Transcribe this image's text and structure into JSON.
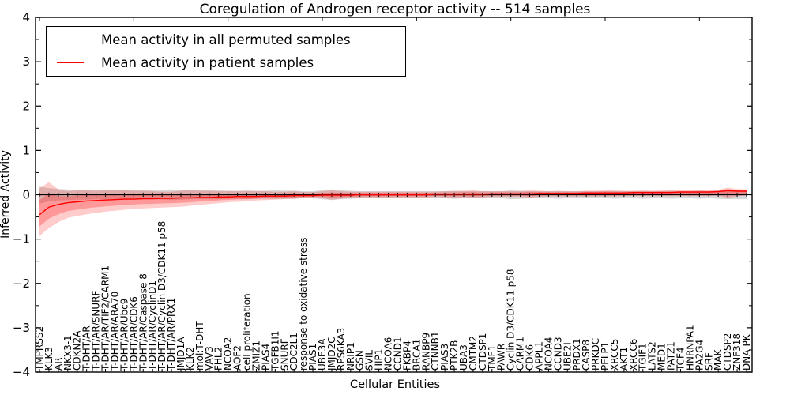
{
  "chart": {
    "title": "Coregulation of Androgen receptor activity -- 514 samples",
    "xlabel": "Cellular Entities",
    "ylabel": "Inferred Activity",
    "legend": {
      "position": "upper left",
      "items": [
        {
          "label": "Mean activity in all permuted samples",
          "color": "#000000"
        },
        {
          "label": "Mean activity in patient samples",
          "color": "#ff0000"
        }
      ]
    }
  },
  "chart_data": {
    "type": "line",
    "title": "Coregulation of Androgen receptor activity -- 514 samples",
    "xlabel": "Cellular Entities",
    "ylabel": "Inferred Activity",
    "ylim": [
      -4,
      4
    ],
    "yticks": [
      -4,
      -3,
      -2,
      -1,
      0,
      1,
      2,
      3,
      4
    ],
    "y_minor_step": 0.5,
    "grid": false,
    "legend_position": "upper left",
    "categories": [
      "TMPRSS2",
      "KLK3",
      "AR",
      "NKX3-1",
      "CDKN2A",
      "T-DHT/AR",
      "T-DHT/AR/SNURF",
      "T-DHT/AR/TIF2/CARM1",
      "T-DHT/AR/ARA70",
      "T-DHT/AR/Ubc9",
      "T-DHT/AR/CDK6",
      "T-DHT/AR/Caspase 8",
      "T-DHT/AR/CyclinD1",
      "T-DHT/AR/Cyclin D3/CDK11 p58",
      "T-DHT/AR/PRX1",
      "JMJD1A",
      "KLK2",
      "mol:T-DHT",
      "VAV3",
      "FHL2",
      "NCOA2",
      "AOF2",
      "cell proliferation",
      "ZMIZ1",
      "PIAS4",
      "TGFB1I1",
      "SNURF",
      "CDC2L1",
      "response to oxidative stress",
      "PIAS1",
      "UBE3A",
      "JMJD2C",
      "RPS6KA3",
      "NRIP1",
      "GSN",
      "SVIL",
      "HIP1",
      "NCOA6",
      "CCND1",
      "FKBP4",
      "BRCA1",
      "RANBP9",
      "CTNNB1",
      "PIAS3",
      "PTK2B",
      "UBA3",
      "CMTM2",
      "CTDSP1",
      "TMF1",
      "PAWR",
      "Cyclin D3/CDK11 p58",
      "CARM1",
      "CDK6",
      "APPL1",
      "NCOA4",
      "CCND3",
      "UBE2I",
      "PRDX1",
      "CASP8",
      "PRKDC",
      "PELP1",
      "XRCC5",
      "AKT1",
      "XRCC6",
      "TGIF1",
      "LATS2",
      "MED1",
      "PATZ1",
      "TCF4",
      "HNRNPA1",
      "PA2G4",
      "SRF",
      "MAK",
      "CTDSP2",
      "ZNF318",
      "DNA-PK"
    ],
    "series": [
      {
        "name": "Mean activity in all permuted samples",
        "color": "#000000",
        "band_color": "rgba(128,128,128,0.30)",
        "marker": "tick",
        "values": [
          0,
          0,
          0,
          0,
          0,
          0,
          0,
          0,
          0,
          0,
          0,
          0,
          0,
          0,
          0,
          0,
          0,
          0,
          0,
          0,
          0,
          0,
          0,
          0,
          0,
          0,
          0,
          0,
          0,
          0,
          0,
          0,
          0,
          0,
          0,
          0,
          0,
          0,
          0,
          0,
          0,
          0,
          0,
          0,
          0,
          0,
          0,
          0,
          0,
          0,
          0,
          0,
          0,
          0,
          0,
          0,
          0,
          0,
          0,
          0,
          0,
          0,
          0,
          0,
          0,
          0,
          0,
          0,
          0,
          0,
          0,
          0,
          0,
          0,
          0,
          0
        ],
        "band_lo": [
          -0.2,
          -0.15,
          -0.13,
          -0.12,
          -0.11,
          -0.11,
          -0.1,
          -0.1,
          -0.1,
          -0.1,
          -0.1,
          -0.1,
          -0.1,
          -0.11,
          -0.12,
          -0.11,
          -0.1,
          -0.1,
          -0.1,
          -0.1,
          -0.09,
          -0.09,
          -0.1,
          -0.09,
          -0.09,
          -0.1,
          -0.09,
          -0.09,
          -0.08,
          -0.08,
          -0.1,
          -0.12,
          -0.1,
          -0.09,
          -0.08,
          -0.08,
          -0.08,
          -0.08,
          -0.08,
          -0.08,
          -0.08,
          -0.08,
          -0.08,
          -0.08,
          -0.09,
          -0.08,
          -0.08,
          -0.08,
          -0.08,
          -0.08,
          -0.1,
          -0.09,
          -0.08,
          -0.08,
          -0.08,
          -0.09,
          -0.08,
          -0.08,
          -0.08,
          -0.08,
          -0.08,
          -0.09,
          -0.08,
          -0.08,
          -0.09,
          -0.08,
          -0.08,
          -0.09,
          -0.08,
          -0.08,
          -0.09,
          -0.08,
          -0.09,
          -0.1,
          -0.1,
          -0.1
        ],
        "band_hi": [
          0.18,
          0.15,
          0.13,
          0.12,
          0.11,
          0.11,
          0.1,
          0.1,
          0.1,
          0.1,
          0.1,
          0.1,
          0.1,
          0.11,
          0.12,
          0.11,
          0.1,
          0.1,
          0.1,
          0.1,
          0.09,
          0.09,
          0.1,
          0.09,
          0.09,
          0.1,
          0.09,
          0.09,
          0.08,
          0.08,
          0.1,
          0.12,
          0.1,
          0.09,
          0.08,
          0.08,
          0.08,
          0.08,
          0.08,
          0.08,
          0.08,
          0.08,
          0.08,
          0.08,
          0.09,
          0.08,
          0.08,
          0.08,
          0.08,
          0.08,
          0.1,
          0.09,
          0.08,
          0.08,
          0.08,
          0.09,
          0.08,
          0.08,
          0.08,
          0.08,
          0.08,
          0.09,
          0.08,
          0.08,
          0.09,
          0.08,
          0.08,
          0.09,
          0.08,
          0.08,
          0.09,
          0.08,
          0.09,
          0.1,
          0.1,
          0.1
        ]
      },
      {
        "name": "Mean activity in patient samples",
        "color": "#ff0000",
        "band_color": "rgba(255,0,0,0.20)",
        "band_inner_color": "rgba(255,0,0,0.25)",
        "marker": "none",
        "values": [
          -0.45,
          -0.28,
          -0.22,
          -0.18,
          -0.16,
          -0.14,
          -0.13,
          -0.12,
          -0.11,
          -0.1,
          -0.1,
          -0.09,
          -0.09,
          -0.08,
          -0.08,
          -0.07,
          -0.07,
          -0.06,
          -0.06,
          -0.05,
          -0.05,
          -0.04,
          -0.04,
          -0.04,
          -0.03,
          -0.03,
          -0.03,
          -0.02,
          -0.02,
          -0.02,
          -0.01,
          -0.01,
          -0.01,
          -0.01,
          0.0,
          0.0,
          0.0,
          0.0,
          0.0,
          0.0,
          0.0,
          0.0,
          0.01,
          0.01,
          0.01,
          0.01,
          0.01,
          0.01,
          0.02,
          0.02,
          0.02,
          0.02,
          0.02,
          0.03,
          0.03,
          0.03,
          0.03,
          0.03,
          0.04,
          0.04,
          0.04,
          0.04,
          0.04,
          0.05,
          0.05,
          0.05,
          0.05,
          0.05,
          0.06,
          0.06,
          0.06,
          0.06,
          0.07,
          0.09,
          0.08,
          0.08
        ],
        "band_lo": [
          -0.93,
          -0.75,
          -0.62,
          -0.52,
          -0.48,
          -0.44,
          -0.41,
          -0.38,
          -0.36,
          -0.34,
          -0.32,
          -0.31,
          -0.3,
          -0.29,
          -0.28,
          -0.27,
          -0.25,
          -0.23,
          -0.21,
          -0.19,
          -0.17,
          -0.16,
          -0.15,
          -0.13,
          -0.12,
          -0.11,
          -0.1,
          -0.09,
          -0.07,
          -0.06,
          -0.08,
          -0.11,
          -0.09,
          -0.07,
          -0.06,
          -0.06,
          -0.07,
          -0.06,
          -0.06,
          -0.06,
          -0.06,
          -0.06,
          -0.05,
          -0.06,
          -0.07,
          -0.06,
          -0.08,
          -0.06,
          -0.05,
          -0.05,
          -0.05,
          -0.05,
          -0.07,
          -0.05,
          -0.04,
          -0.04,
          -0.04,
          -0.04,
          -0.04,
          -0.04,
          -0.04,
          -0.04,
          -0.03,
          -0.03,
          -0.03,
          -0.03,
          -0.03,
          -0.03,
          -0.03,
          -0.03,
          -0.03,
          -0.03,
          -0.02,
          -0.07,
          -0.03,
          -0.02
        ],
        "band_hi": [
          0.15,
          0.28,
          0.12,
          0.08,
          0.1,
          0.1,
          0.09,
          0.1,
          0.11,
          0.1,
          0.09,
          0.09,
          0.08,
          0.07,
          0.07,
          0.09,
          0.1,
          0.09,
          0.09,
          0.08,
          0.08,
          0.08,
          0.08,
          0.08,
          0.08,
          0.07,
          0.07,
          0.08,
          0.06,
          0.06,
          0.08,
          0.1,
          0.08,
          0.07,
          0.07,
          0.07,
          0.07,
          0.07,
          0.07,
          0.07,
          0.07,
          0.07,
          0.07,
          0.08,
          0.08,
          0.09,
          0.1,
          0.08,
          0.08,
          0.08,
          0.08,
          0.08,
          0.1,
          0.09,
          0.08,
          0.08,
          0.08,
          0.08,
          0.09,
          0.09,
          0.1,
          0.09,
          0.09,
          0.09,
          0.09,
          0.09,
          0.1,
          0.1,
          0.1,
          0.1,
          0.1,
          0.1,
          0.11,
          0.16,
          0.13,
          0.12
        ]
      }
    ]
  }
}
